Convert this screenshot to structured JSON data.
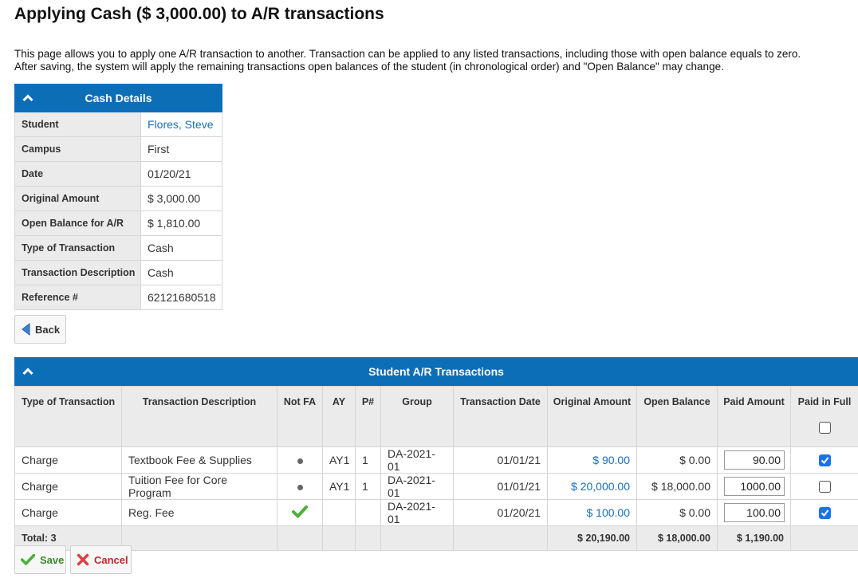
{
  "page": {
    "title": "Applying Cash ($ 3,000.00) to A/R transactions",
    "description_line1": "This page allows you to apply one A/R transaction to another. Transaction can be applied to any listed transactions, including those with open balance equals to zero.",
    "description_line2": "After saving, the system will apply the remaining transactions open balances of the student (in chronological order) and \"Open Balance\" may change."
  },
  "cash_details": {
    "title": "Cash Details",
    "rows": [
      {
        "label": "Student",
        "value": "Flores, Steve"
      },
      {
        "label": "Campus",
        "value": "First"
      },
      {
        "label": "Date",
        "value": "01/20/21"
      },
      {
        "label": "Original Amount",
        "value": "$ 3,000.00"
      },
      {
        "label": "Open Balance for A/R",
        "value": "$ 1,810.00"
      },
      {
        "label": "Type of Transaction",
        "value": "Cash"
      },
      {
        "label": "Transaction Description",
        "value": "Cash"
      },
      {
        "label": "Reference #",
        "value": "62121680518"
      }
    ]
  },
  "buttons": {
    "back": "Back",
    "save": "Save",
    "cancel": "Cancel"
  },
  "transactions": {
    "title": "Student A/R Transactions",
    "columns": [
      "Type of Transaction",
      "Transaction Description",
      "Not FA",
      "AY",
      "P#",
      "Group",
      "Transaction Date",
      "Original Amount",
      "Open Balance",
      "Paid Amount",
      "Paid in Full"
    ],
    "header_paid_in_full_checked": false,
    "rows": [
      {
        "type": "Charge",
        "description": "Textbook Fee & Supplies",
        "not_fa": "dot",
        "ay": "AY1",
        "p": "1",
        "group": "DA-2021-01",
        "date": "01/01/21",
        "original": "$ 90.00",
        "open": "$ 0.00",
        "paid": "90.00",
        "paid_in_full": true
      },
      {
        "type": "Charge",
        "description": "Tuition Fee for Core Program",
        "not_fa": "dot",
        "ay": "AY1",
        "p": "1",
        "group": "DA-2021-01",
        "date": "01/01/21",
        "original": "$ 20,000.00",
        "open": "$ 18,000.00",
        "paid": "1000.00",
        "paid_in_full": false
      },
      {
        "type": "Charge",
        "description": "Reg. Fee",
        "not_fa": "check",
        "ay": "",
        "p": "",
        "group": "DA-2021-01",
        "date": "01/20/21",
        "original": "$ 100.00",
        "open": "$ 0.00",
        "paid": "100.00",
        "paid_in_full": true
      }
    ],
    "total": {
      "label": "Total: 3",
      "original": "$ 20,190.00",
      "open": "$ 18,000.00",
      "paid": "$ 1,190.00"
    }
  },
  "colors": {
    "header_blue": "#0d6eb8",
    "link_blue": "#1a6fb8",
    "save_green": "#3a8a25",
    "cancel_red": "#c0282d"
  }
}
